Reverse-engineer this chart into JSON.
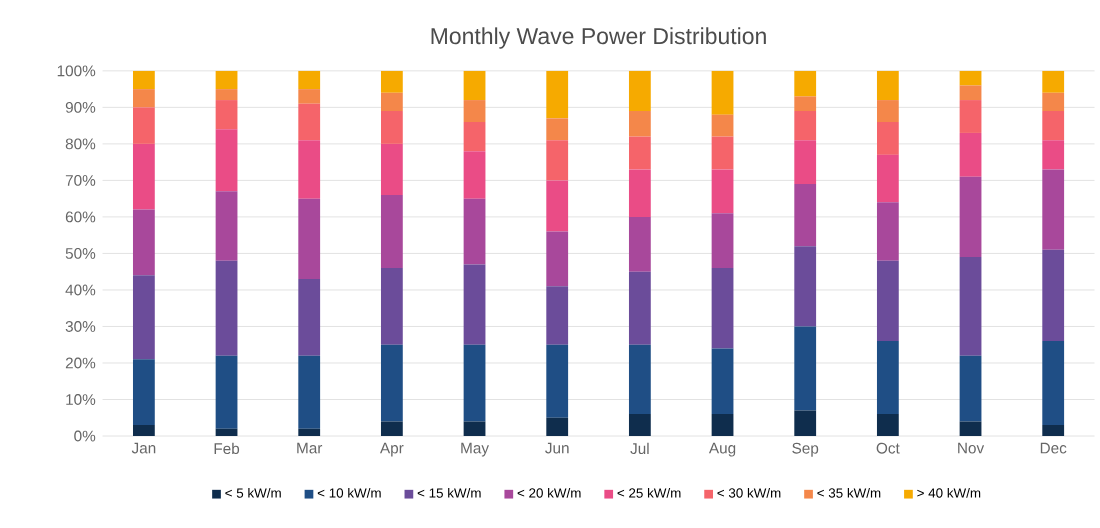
{
  "chart_data": {
    "type": "bar",
    "stacked": true,
    "title": "Monthly Wave Power Distribution",
    "categories": [
      "Jan",
      "Feb",
      "Mar",
      "Apr",
      "May",
      "Jun",
      "Jul",
      "Aug",
      "Sep",
      "Oct",
      "Nov",
      "Dec"
    ],
    "series": [
      {
        "name": "< 5 kW/m",
        "color": "#0f2d4d",
        "values": [
          3,
          2,
          2,
          4,
          4,
          5,
          6,
          6,
          7,
          6,
          4,
          3
        ]
      },
      {
        "name": "< 10 kW/m",
        "color": "#1f4e85",
        "values": [
          18,
          20,
          20,
          21,
          21,
          20,
          19,
          18,
          23,
          20,
          18,
          23
        ]
      },
      {
        "name": "< 15 kW/m",
        "color": "#6b4c9a",
        "values": [
          23,
          26,
          21,
          21,
          22,
          16,
          20,
          22,
          22,
          22,
          27,
          25
        ]
      },
      {
        "name": "< 20 kW/m",
        "color": "#a8489b",
        "values": [
          18,
          19,
          22,
          20,
          18,
          15,
          15,
          15,
          17,
          16,
          22,
          22
        ]
      },
      {
        "name": "< 25 kW/m",
        "color": "#ea4c86",
        "values": [
          18,
          17,
          16,
          14,
          13,
          14,
          13,
          12,
          12,
          13,
          12,
          8
        ]
      },
      {
        "name": "< 30 kW/m",
        "color": "#f5646a",
        "values": [
          10,
          8,
          10,
          9,
          8,
          11,
          9,
          9,
          8,
          9,
          9,
          8
        ]
      },
      {
        "name": "< 35 kW/m",
        "color": "#f4874a",
        "values": [
          5,
          3,
          4,
          5,
          6,
          6,
          7,
          6,
          4,
          6,
          4,
          5
        ]
      },
      {
        "name": "> 40 kW/m",
        "color": "#f6aa00",
        "values": [
          5,
          5,
          5,
          6,
          8,
          13,
          11,
          12,
          7,
          8,
          4,
          6
        ]
      }
    ],
    "ylim": [
      0,
      100
    ],
    "yticks": [
      {
        "value": 0,
        "label": "0%"
      },
      {
        "value": 10,
        "label": "10%"
      },
      {
        "value": 20,
        "label": "20%"
      },
      {
        "value": 30,
        "label": "30%"
      },
      {
        "value": 40,
        "label": "40%"
      },
      {
        "value": 50,
        "label": "50%"
      },
      {
        "value": 60,
        "label": "60%"
      },
      {
        "value": 70,
        "label": "70%"
      },
      {
        "value": 80,
        "label": "80%"
      },
      {
        "value": 90,
        "label": "90%"
      },
      {
        "value": 100,
        "label": "100%"
      }
    ],
    "grid": "y",
    "legend": "bottom"
  }
}
